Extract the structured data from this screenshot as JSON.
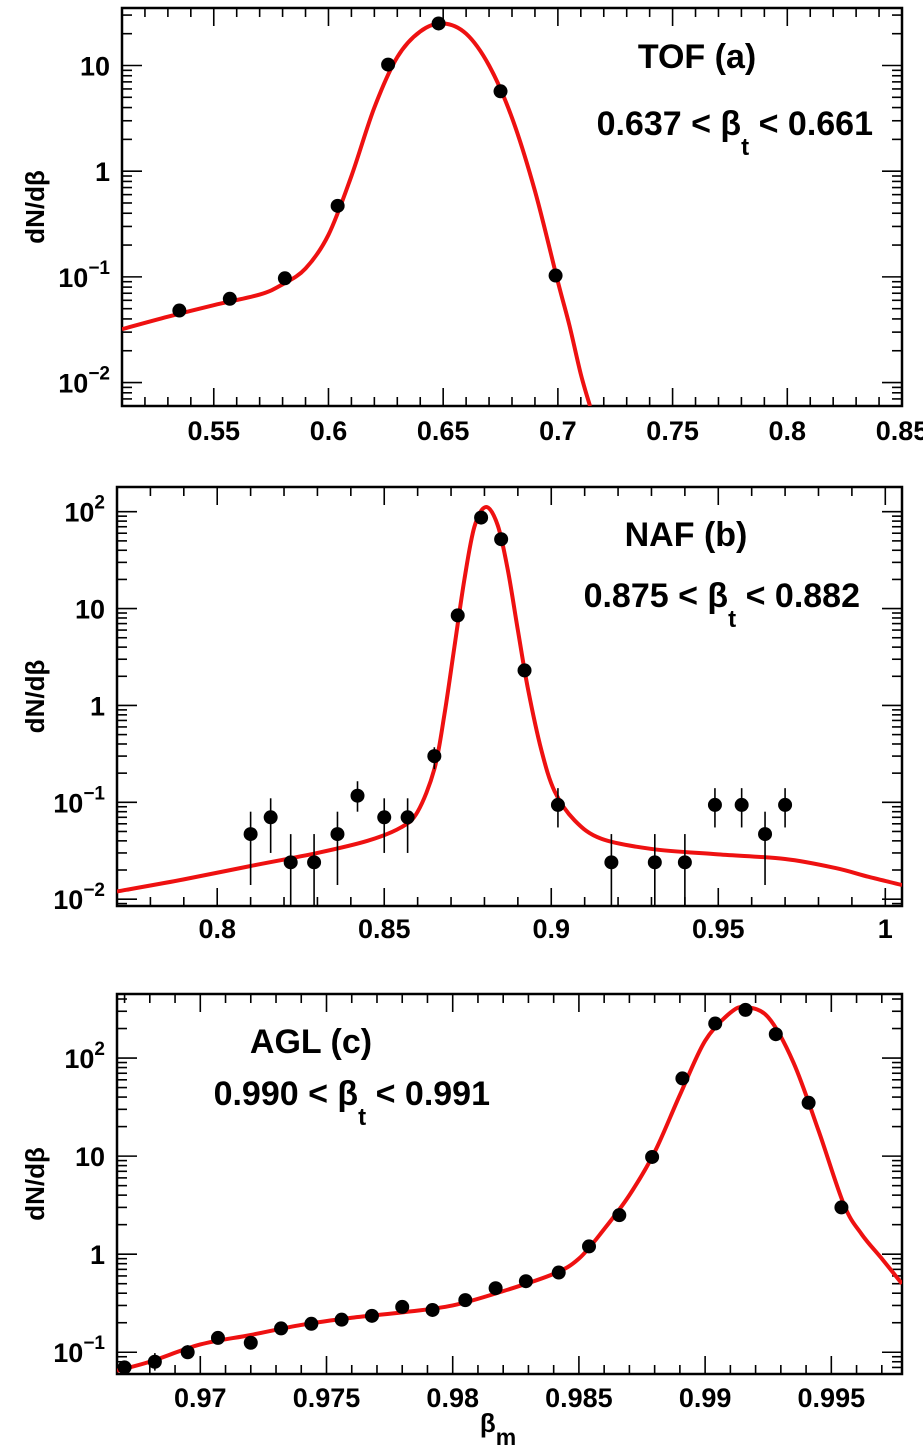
{
  "chart_data": [
    {
      "type": "scatter",
      "panel": "a",
      "yscale": "log",
      "xlim": [
        0.51,
        0.85
      ],
      "ylim": [
        0.006,
        35
      ],
      "xticks": [
        0.55,
        0.6,
        0.65,
        0.7,
        0.75,
        0.8,
        0.85
      ],
      "xtick_labels": [
        "0.55",
        "0.6",
        "0.65",
        "0.7",
        "0.75",
        "0.8",
        "0.85"
      ],
      "yticks": [
        {
          "value": 0.01,
          "base": "10",
          "exp": "−2"
        },
        {
          "value": 0.1,
          "base": "10",
          "exp": "−1"
        },
        {
          "value": 1,
          "base": "1",
          "exp": ""
        },
        {
          "value": 10,
          "base": "10",
          "exp": ""
        }
      ],
      "ylabel": "dN/dβ",
      "xlabel": "",
      "annotation": {
        "title": "TOF (a)",
        "range_prefix": "0.637 < β",
        "range_sub": "t",
        "range_suffix": " < 0.661"
      },
      "series": [
        {
          "type": "scatter",
          "points": [
            {
              "x": 0.535,
              "y": 0.048
            },
            {
              "x": 0.557,
              "y": 0.062
            },
            {
              "x": 0.581,
              "y": 0.097
            },
            {
              "x": 0.604,
              "y": 0.47
            },
            {
              "x": 0.626,
              "y": 10.2
            },
            {
              "x": 0.648,
              "y": 25
            },
            {
              "x": 0.675,
              "y": 5.7
            },
            {
              "x": 0.699,
              "y": 0.103
            }
          ]
        },
        {
          "type": "line",
          "color": "#ee1111",
          "points": [
            {
              "x": 0.51,
              "y": 0.032
            },
            {
              "x": 0.53,
              "y": 0.042
            },
            {
              "x": 0.55,
              "y": 0.054
            },
            {
              "x": 0.57,
              "y": 0.068
            },
            {
              "x": 0.58,
              "y": 0.085
            },
            {
              "x": 0.59,
              "y": 0.12
            },
            {
              "x": 0.6,
              "y": 0.25
            },
            {
              "x": 0.61,
              "y": 0.9
            },
            {
              "x": 0.62,
              "y": 4.0
            },
            {
              "x": 0.63,
              "y": 12
            },
            {
              "x": 0.64,
              "y": 21
            },
            {
              "x": 0.65,
              "y": 25
            },
            {
              "x": 0.66,
              "y": 20
            },
            {
              "x": 0.67,
              "y": 10
            },
            {
              "x": 0.68,
              "y": 3.2
            },
            {
              "x": 0.69,
              "y": 0.65
            },
            {
              "x": 0.7,
              "y": 0.09
            },
            {
              "x": 0.705,
              "y": 0.035
            },
            {
              "x": 0.71,
              "y": 0.012
            },
            {
              "x": 0.714,
              "y": 0.006
            }
          ]
        }
      ]
    },
    {
      "type": "scatter",
      "panel": "b",
      "yscale": "log",
      "xlim": [
        0.77,
        1.005
      ],
      "ylim": [
        0.0085,
        180
      ],
      "xticks": [
        0.8,
        0.85,
        0.9,
        0.95,
        1.0
      ],
      "xtick_labels": [
        "0.8",
        "0.85",
        "0.9",
        "0.95",
        "1"
      ],
      "yticks": [
        {
          "value": 0.01,
          "base": "10",
          "exp": "−2"
        },
        {
          "value": 0.1,
          "base": "10",
          "exp": "−1"
        },
        {
          "value": 1,
          "base": "1",
          "exp": ""
        },
        {
          "value": 10,
          "base": "10",
          "exp": ""
        },
        {
          "value": 100,
          "base": "10",
          "exp": "2"
        }
      ],
      "ylabel": "dN/dβ",
      "xlabel": "",
      "annotation": {
        "title": "NAF (b)",
        "range_prefix": "0.875 < β",
        "range_sub": "t",
        "range_suffix": " < 0.882"
      },
      "series": [
        {
          "type": "scatter",
          "points": [
            {
              "x": 0.81,
              "y": 0.047,
              "ylo": 0.014,
              "yhi": 0.08
            },
            {
              "x": 0.816,
              "y": 0.07,
              "ylo": 0.03,
              "yhi": 0.11
            },
            {
              "x": 0.822,
              "y": 0.024,
              "ylo": 0.006,
              "yhi": 0.047
            },
            {
              "x": 0.829,
              "y": 0.024,
              "ylo": 0.006,
              "yhi": 0.047
            },
            {
              "x": 0.836,
              "y": 0.047,
              "ylo": 0.014,
              "yhi": 0.08
            },
            {
              "x": 0.842,
              "y": 0.117,
              "ylo": 0.08,
              "yhi": 0.165
            },
            {
              "x": 0.85,
              "y": 0.07,
              "ylo": 0.03,
              "yhi": 0.11
            },
            {
              "x": 0.857,
              "y": 0.07,
              "ylo": 0.03,
              "yhi": 0.11
            },
            {
              "x": 0.865,
              "y": 0.3,
              "ylo": 0.22,
              "yhi": 0.37
            },
            {
              "x": 0.872,
              "y": 8.5
            },
            {
              "x": 0.879,
              "y": 87
            },
            {
              "x": 0.885,
              "y": 52
            },
            {
              "x": 0.892,
              "y": 2.3
            },
            {
              "x": 0.902,
              "y": 0.094,
              "ylo": 0.055,
              "yhi": 0.14
            },
            {
              "x": 0.918,
              "y": 0.024,
              "ylo": 0.006,
              "yhi": 0.047
            },
            {
              "x": 0.931,
              "y": 0.024,
              "ylo": 0.006,
              "yhi": 0.047
            },
            {
              "x": 0.94,
              "y": 0.024,
              "ylo": 0.006,
              "yhi": 0.047
            },
            {
              "x": 0.949,
              "y": 0.094,
              "ylo": 0.055,
              "yhi": 0.14
            },
            {
              "x": 0.957,
              "y": 0.094,
              "ylo": 0.055,
              "yhi": 0.14
            },
            {
              "x": 0.964,
              "y": 0.047,
              "ylo": 0.014,
              "yhi": 0.08
            },
            {
              "x": 0.97,
              "y": 0.094,
              "ylo": 0.055,
              "yhi": 0.14
            }
          ]
        },
        {
          "type": "line",
          "color": "#ee1111",
          "points": [
            {
              "x": 0.77,
              "y": 0.012
            },
            {
              "x": 0.79,
              "y": 0.016
            },
            {
              "x": 0.81,
              "y": 0.022
            },
            {
              "x": 0.83,
              "y": 0.03
            },
            {
              "x": 0.845,
              "y": 0.04
            },
            {
              "x": 0.855,
              "y": 0.055
            },
            {
              "x": 0.86,
              "y": 0.08
            },
            {
              "x": 0.865,
              "y": 0.22
            },
            {
              "x": 0.868,
              "y": 0.8
            },
            {
              "x": 0.871,
              "y": 4
            },
            {
              "x": 0.874,
              "y": 20
            },
            {
              "x": 0.877,
              "y": 70
            },
            {
              "x": 0.8805,
              "y": 112
            },
            {
              "x": 0.884,
              "y": 72
            },
            {
              "x": 0.887,
              "y": 25
            },
            {
              "x": 0.89,
              "y": 6
            },
            {
              "x": 0.893,
              "y": 1.5
            },
            {
              "x": 0.897,
              "y": 0.35
            },
            {
              "x": 0.901,
              "y": 0.13
            },
            {
              "x": 0.907,
              "y": 0.065
            },
            {
              "x": 0.915,
              "y": 0.042
            },
            {
              "x": 0.93,
              "y": 0.033
            },
            {
              "x": 0.95,
              "y": 0.029
            },
            {
              "x": 0.97,
              "y": 0.026
            },
            {
              "x": 0.985,
              "y": 0.021
            },
            {
              "x": 0.995,
              "y": 0.017
            },
            {
              "x": 1.005,
              "y": 0.014
            }
          ]
        }
      ]
    },
    {
      "type": "scatter",
      "panel": "c",
      "yscale": "log",
      "xlim": [
        0.9667,
        0.9978
      ],
      "ylim": [
        0.06,
        450
      ],
      "xticks": [
        0.97,
        0.975,
        0.98,
        0.985,
        0.99,
        0.995
      ],
      "xtick_labels": [
        "0.97",
        "0.975",
        "0.98",
        "0.985",
        "0.99",
        "0.995"
      ],
      "yticks": [
        {
          "value": 0.1,
          "base": "10",
          "exp": "−1"
        },
        {
          "value": 1,
          "base": "1",
          "exp": ""
        },
        {
          "value": 10,
          "base": "10",
          "exp": ""
        },
        {
          "value": 100,
          "base": "10",
          "exp": "2"
        }
      ],
      "ylabel": "dN/dβ",
      "xlabel": "β",
      "xlabel_sub": "m",
      "annotation": {
        "title": "AGL (c)",
        "range_prefix": "0.990 < β",
        "range_sub": "t",
        "range_suffix": " < 0.991"
      },
      "series": [
        {
          "type": "scatter",
          "points": [
            {
              "x": 0.967,
              "y": 0.07,
              "ylo": 0.06,
              "yhi": 0.082
            },
            {
              "x": 0.9682,
              "y": 0.08,
              "ylo": 0.065,
              "yhi": 0.098
            },
            {
              "x": 0.9695,
              "y": 0.1,
              "ylo": 0.087,
              "yhi": 0.118
            },
            {
              "x": 0.9707,
              "y": 0.14,
              "ylo": 0.127,
              "yhi": 0.155
            },
            {
              "x": 0.972,
              "y": 0.125,
              "ylo": 0.108,
              "yhi": 0.142
            },
            {
              "x": 0.9732,
              "y": 0.175
            },
            {
              "x": 0.9744,
              "y": 0.195
            },
            {
              "x": 0.9756,
              "y": 0.215
            },
            {
              "x": 0.9768,
              "y": 0.235
            },
            {
              "x": 0.978,
              "y": 0.29
            },
            {
              "x": 0.9792,
              "y": 0.27
            },
            {
              "x": 0.9805,
              "y": 0.34
            },
            {
              "x": 0.9817,
              "y": 0.45
            },
            {
              "x": 0.9829,
              "y": 0.53
            },
            {
              "x": 0.9842,
              "y": 0.65
            },
            {
              "x": 0.9854,
              "y": 1.2
            },
            {
              "x": 0.9866,
              "y": 2.5
            },
            {
              "x": 0.9879,
              "y": 9.8
            },
            {
              "x": 0.9891,
              "y": 62
            },
            {
              "x": 0.9904,
              "y": 225
            },
            {
              "x": 0.9916,
              "y": 310
            },
            {
              "x": 0.9928,
              "y": 175
            },
            {
              "x": 0.9941,
              "y": 35
            },
            {
              "x": 0.9954,
              "y": 3.0
            }
          ]
        },
        {
          "type": "line",
          "color": "#ee1111",
          "points": [
            {
              "x": 0.9667,
              "y": 0.065
            },
            {
              "x": 0.968,
              "y": 0.08
            },
            {
              "x": 0.97,
              "y": 0.12
            },
            {
              "x": 0.972,
              "y": 0.15
            },
            {
              "x": 0.974,
              "y": 0.19
            },
            {
              "x": 0.976,
              "y": 0.225
            },
            {
              "x": 0.978,
              "y": 0.255
            },
            {
              "x": 0.98,
              "y": 0.3
            },
            {
              "x": 0.982,
              "y": 0.42
            },
            {
              "x": 0.984,
              "y": 0.63
            },
            {
              "x": 0.985,
              "y": 0.9
            },
            {
              "x": 0.986,
              "y": 1.8
            },
            {
              "x": 0.987,
              "y": 4.0
            },
            {
              "x": 0.988,
              "y": 11
            },
            {
              "x": 0.989,
              "y": 42
            },
            {
              "x": 0.99,
              "y": 150
            },
            {
              "x": 0.991,
              "y": 290
            },
            {
              "x": 0.9916,
              "y": 330
            },
            {
              "x": 0.9925,
              "y": 260
            },
            {
              "x": 0.9935,
              "y": 90
            },
            {
              "x": 0.9945,
              "y": 18
            },
            {
              "x": 0.9955,
              "y": 3.2
            },
            {
              "x": 0.9962,
              "y": 1.6
            },
            {
              "x": 0.997,
              "y": 0.9
            },
            {
              "x": 0.9978,
              "y": 0.5
            }
          ]
        }
      ]
    }
  ]
}
